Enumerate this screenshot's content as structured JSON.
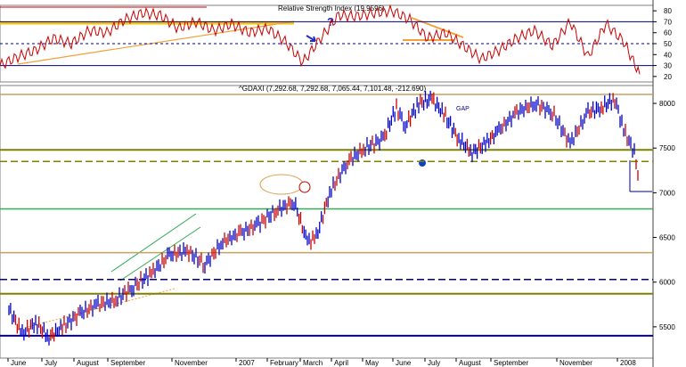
{
  "chart_data": [
    {
      "type": "line",
      "title": "Relative Strength Index (19.9596)",
      "ylim": [
        15,
        85
      ],
      "yticks": [
        20,
        30,
        40,
        50,
        60,
        70,
        80
      ],
      "grid": false,
      "colors": {
        "series": "#cc0000",
        "guides": "#000080",
        "trend_up": "#f2a13a",
        "band": "#f5c400"
      },
      "reference_lines": [
        {
          "value": 70,
          "style": "solid"
        },
        {
          "value": 50,
          "style": "dashed"
        },
        {
          "value": 30,
          "style": "solid"
        }
      ],
      "series": [
        {
          "x": [
            0,
            20,
            40,
            60,
            80,
            100,
            120,
            140,
            160,
            180,
            200,
            220,
            240,
            260,
            280,
            300,
            320,
            340,
            360,
            380,
            400,
            420,
            440,
            460,
            480,
            500,
            520,
            540,
            560,
            580,
            600,
            620,
            640,
            660,
            680,
            700,
            718
          ],
          "values": [
            30,
            38,
            44,
            55,
            50,
            62,
            60,
            72,
            78,
            76,
            64,
            70,
            62,
            68,
            60,
            64,
            52,
            33,
            55,
            76,
            75,
            78,
            80,
            72,
            55,
            60,
            48,
            36,
            44,
            55,
            62,
            48,
            70,
            38,
            68,
            52,
            22
          ]
        }
      ]
    },
    {
      "type": "line",
      "title": "^GDAXI (7,292.68, 7,292.68, 7,065.44, 7,101.48, -212.690)",
      "ylim": [
        5150,
        8200
      ],
      "yticks": [
        5500,
        6000,
        6500,
        7000,
        7500,
        8000
      ],
      "categories": [
        "June",
        "July",
        "August",
        "September",
        "November",
        "2007",
        "February",
        "March",
        "April",
        "May",
        "June",
        "July",
        "August",
        "September",
        "November",
        "2008"
      ],
      "grid": false,
      "colors": {
        "bars": "#0000cc",
        "down_bars": "#cc0000",
        "support": "#000080",
        "olive": "#808000",
        "tan": "#c8a060",
        "green": "#33aa55"
      },
      "reference_lines": [
        {
          "value": 8100,
          "color": "tan",
          "style": "solid"
        },
        {
          "value": 7480,
          "color": "olive",
          "style": "solid"
        },
        {
          "value": 7350,
          "color": "olive",
          "style": "dashed"
        },
        {
          "value": 6820,
          "color": "green",
          "style": "solid"
        },
        {
          "value": 6330,
          "color": "tan",
          "style": "solid"
        },
        {
          "value": 6030,
          "color": "support",
          "style": "dashed"
        },
        {
          "value": 5870,
          "color": "olive",
          "style": "solid"
        },
        {
          "value": 5400,
          "color": "support",
          "style": "solid"
        }
      ],
      "annotations": [
        "GAP"
      ],
      "series": [
        {
          "x": [
            10,
            25,
            40,
            55,
            70,
            90,
            110,
            130,
            150,
            170,
            190,
            210,
            230,
            250,
            270,
            290,
            310,
            330,
            345,
            355,
            370,
            390,
            410,
            430,
            445,
            455,
            470,
            485,
            500,
            515,
            530,
            545,
            560,
            580,
            600,
            620,
            640,
            660,
            675,
            690,
            700,
            712,
            718
          ],
          "values": [
            5700,
            5420,
            5550,
            5380,
            5500,
            5650,
            5750,
            5800,
            5950,
            6100,
            6300,
            6350,
            6200,
            6450,
            6550,
            6650,
            6800,
            6900,
            6450,
            6500,
            7000,
            7350,
            7500,
            7600,
            7950,
            7750,
            8000,
            8050,
            7850,
            7600,
            7450,
            7550,
            7700,
            7900,
            8000,
            7900,
            7550,
            7900,
            7950,
            8050,
            7700,
            7450,
            7100
          ]
        }
      ]
    }
  ]
}
